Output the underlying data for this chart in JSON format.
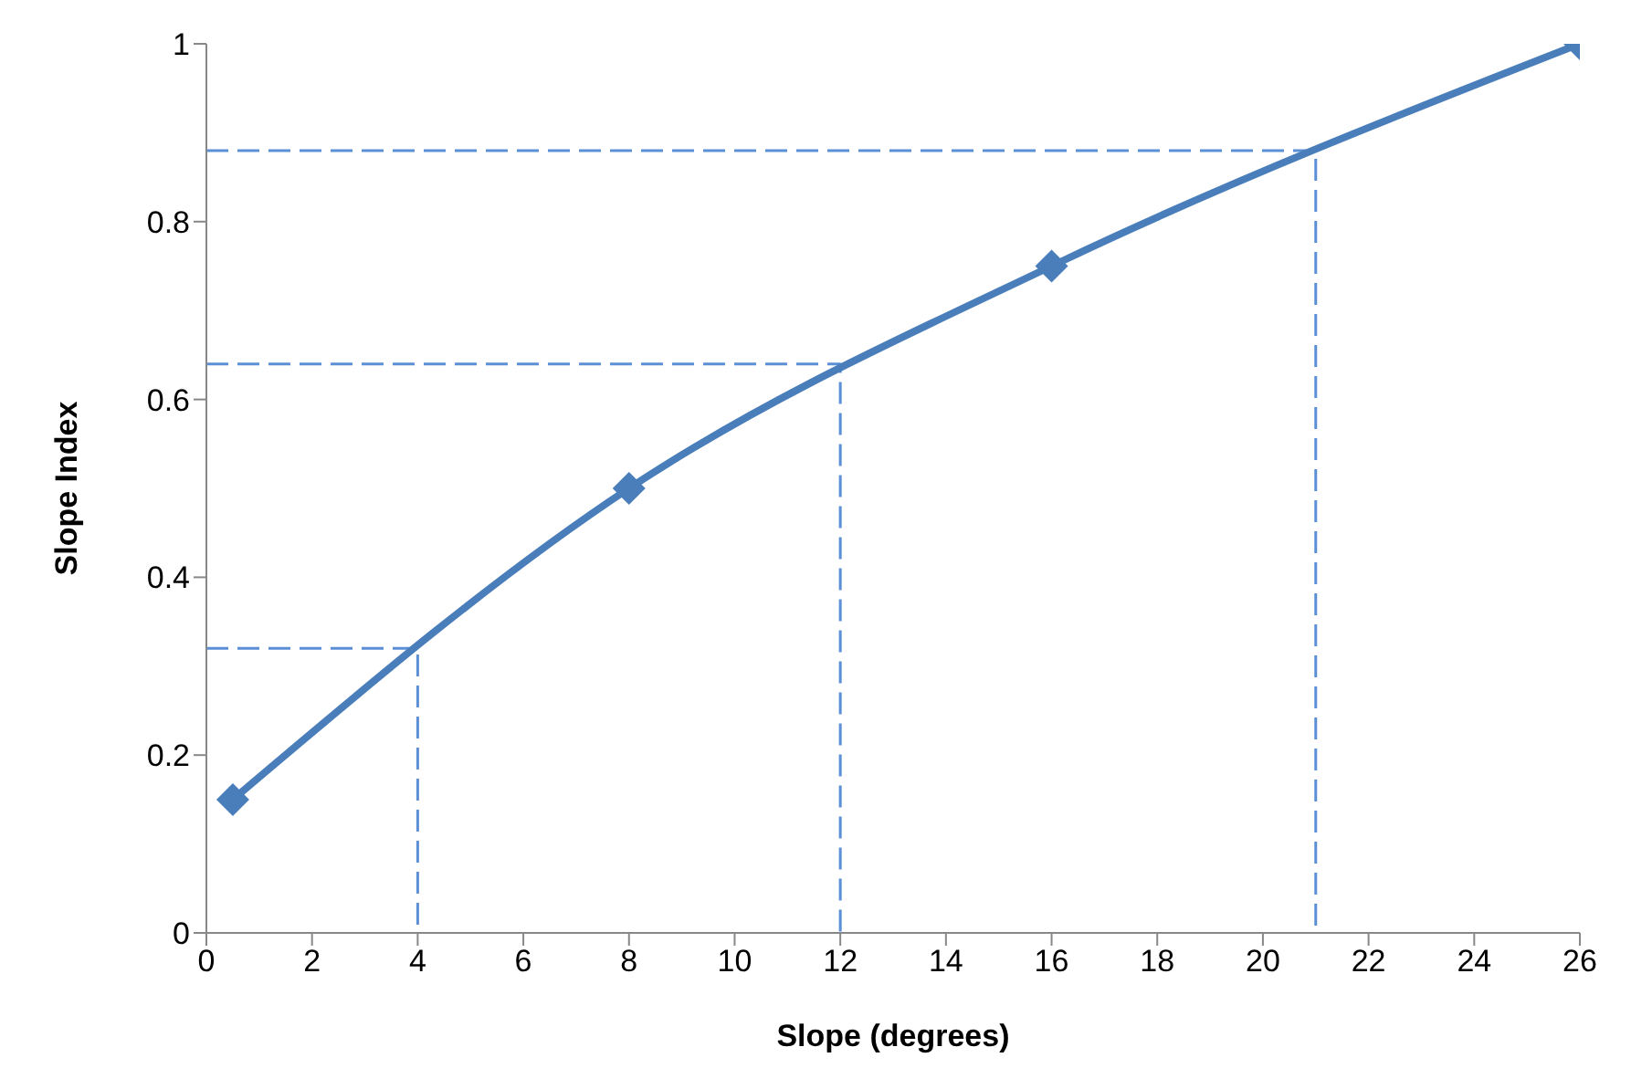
{
  "chart_data": {
    "type": "line",
    "xlabel": "Slope (degrees)",
    "ylabel": "Slope Index",
    "xlim": [
      0,
      26
    ],
    "xticks": [
      0,
      2,
      4,
      6,
      8,
      10,
      12,
      14,
      16,
      18,
      20,
      22,
      24,
      26
    ],
    "ylim": [
      0,
      1
    ],
    "yticks": [
      0,
      0.2,
      0.4,
      0.6,
      0.8,
      1
    ],
    "grid": false,
    "series": [
      {
        "color": "#4a7ebb",
        "x": [
          0.5,
          8,
          16,
          26
        ],
        "values": [
          0.15,
          0.5,
          0.75,
          1
        ],
        "marker": "diamond",
        "line_style": "solid"
      },
      {
        "color": "#5b8fd6",
        "x": [
          0,
          4,
          4
        ],
        "values": [
          0.32,
          0.32,
          0
        ],
        "marker": "none",
        "line_style": "dashed"
      },
      {
        "color": "#5b8fd6",
        "x": [
          0,
          12,
          12
        ],
        "values": [
          0.64,
          0.64,
          0
        ],
        "marker": "none",
        "line_style": "dashed"
      },
      {
        "color": "#5b8fd6",
        "x": [
          0,
          21,
          21
        ],
        "values": [
          0.88,
          0.88,
          0
        ],
        "marker": "none",
        "line_style": "dashed"
      }
    ]
  }
}
